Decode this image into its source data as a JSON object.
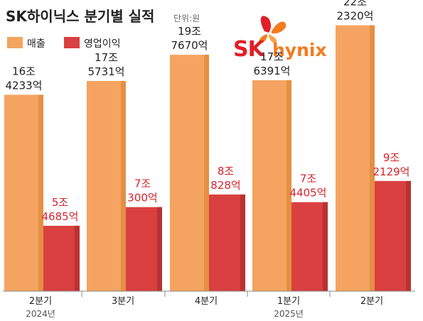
{
  "title": "SK하이닉스 분기별 실적",
  "unit_note": "단위:원",
  "logo": {
    "text_sk": "SK",
    "text_hynix": "hynix"
  },
  "colors": {
    "revenue": "#f4a460",
    "revenue_side": "#e58f44",
    "operating_profit": "#d9403f",
    "operating_profit_side": "#b93232",
    "op_label": "#d5232c",
    "axis": "#888888"
  },
  "chart_data": {
    "type": "bar",
    "title": "SK하이닉스 분기별 실적",
    "unit": "단위:원",
    "categories": [
      "2분기",
      "3분기",
      "4분기",
      "1분기",
      "2분기"
    ],
    "years": [
      "2024년",
      "",
      "",
      "2025년",
      ""
    ],
    "series": [
      {
        "name": "매출",
        "values_trillion_won": [
          16.4233,
          17.5731,
          19.767,
          17.6391,
          22.232
        ],
        "labels": [
          [
            "16조",
            "4233억"
          ],
          [
            "17조",
            "5731억"
          ],
          [
            "19조",
            "7670억"
          ],
          [
            "17조",
            "6391억"
          ],
          [
            "22조",
            "2320억"
          ]
        ]
      },
      {
        "name": "영업이익",
        "values_trillion_won": [
          5.4685,
          7.03,
          8.0828,
          7.4405,
          9.2129
        ],
        "labels": [
          [
            "5조",
            "4685억"
          ],
          [
            "7조",
            "300억"
          ],
          [
            "8조",
            "828억"
          ],
          [
            "7조",
            "4405억"
          ],
          [
            "9조",
            "2129억"
          ]
        ]
      }
    ],
    "legend": "top-left",
    "grid": false,
    "ylim": [
      0,
      25
    ]
  }
}
